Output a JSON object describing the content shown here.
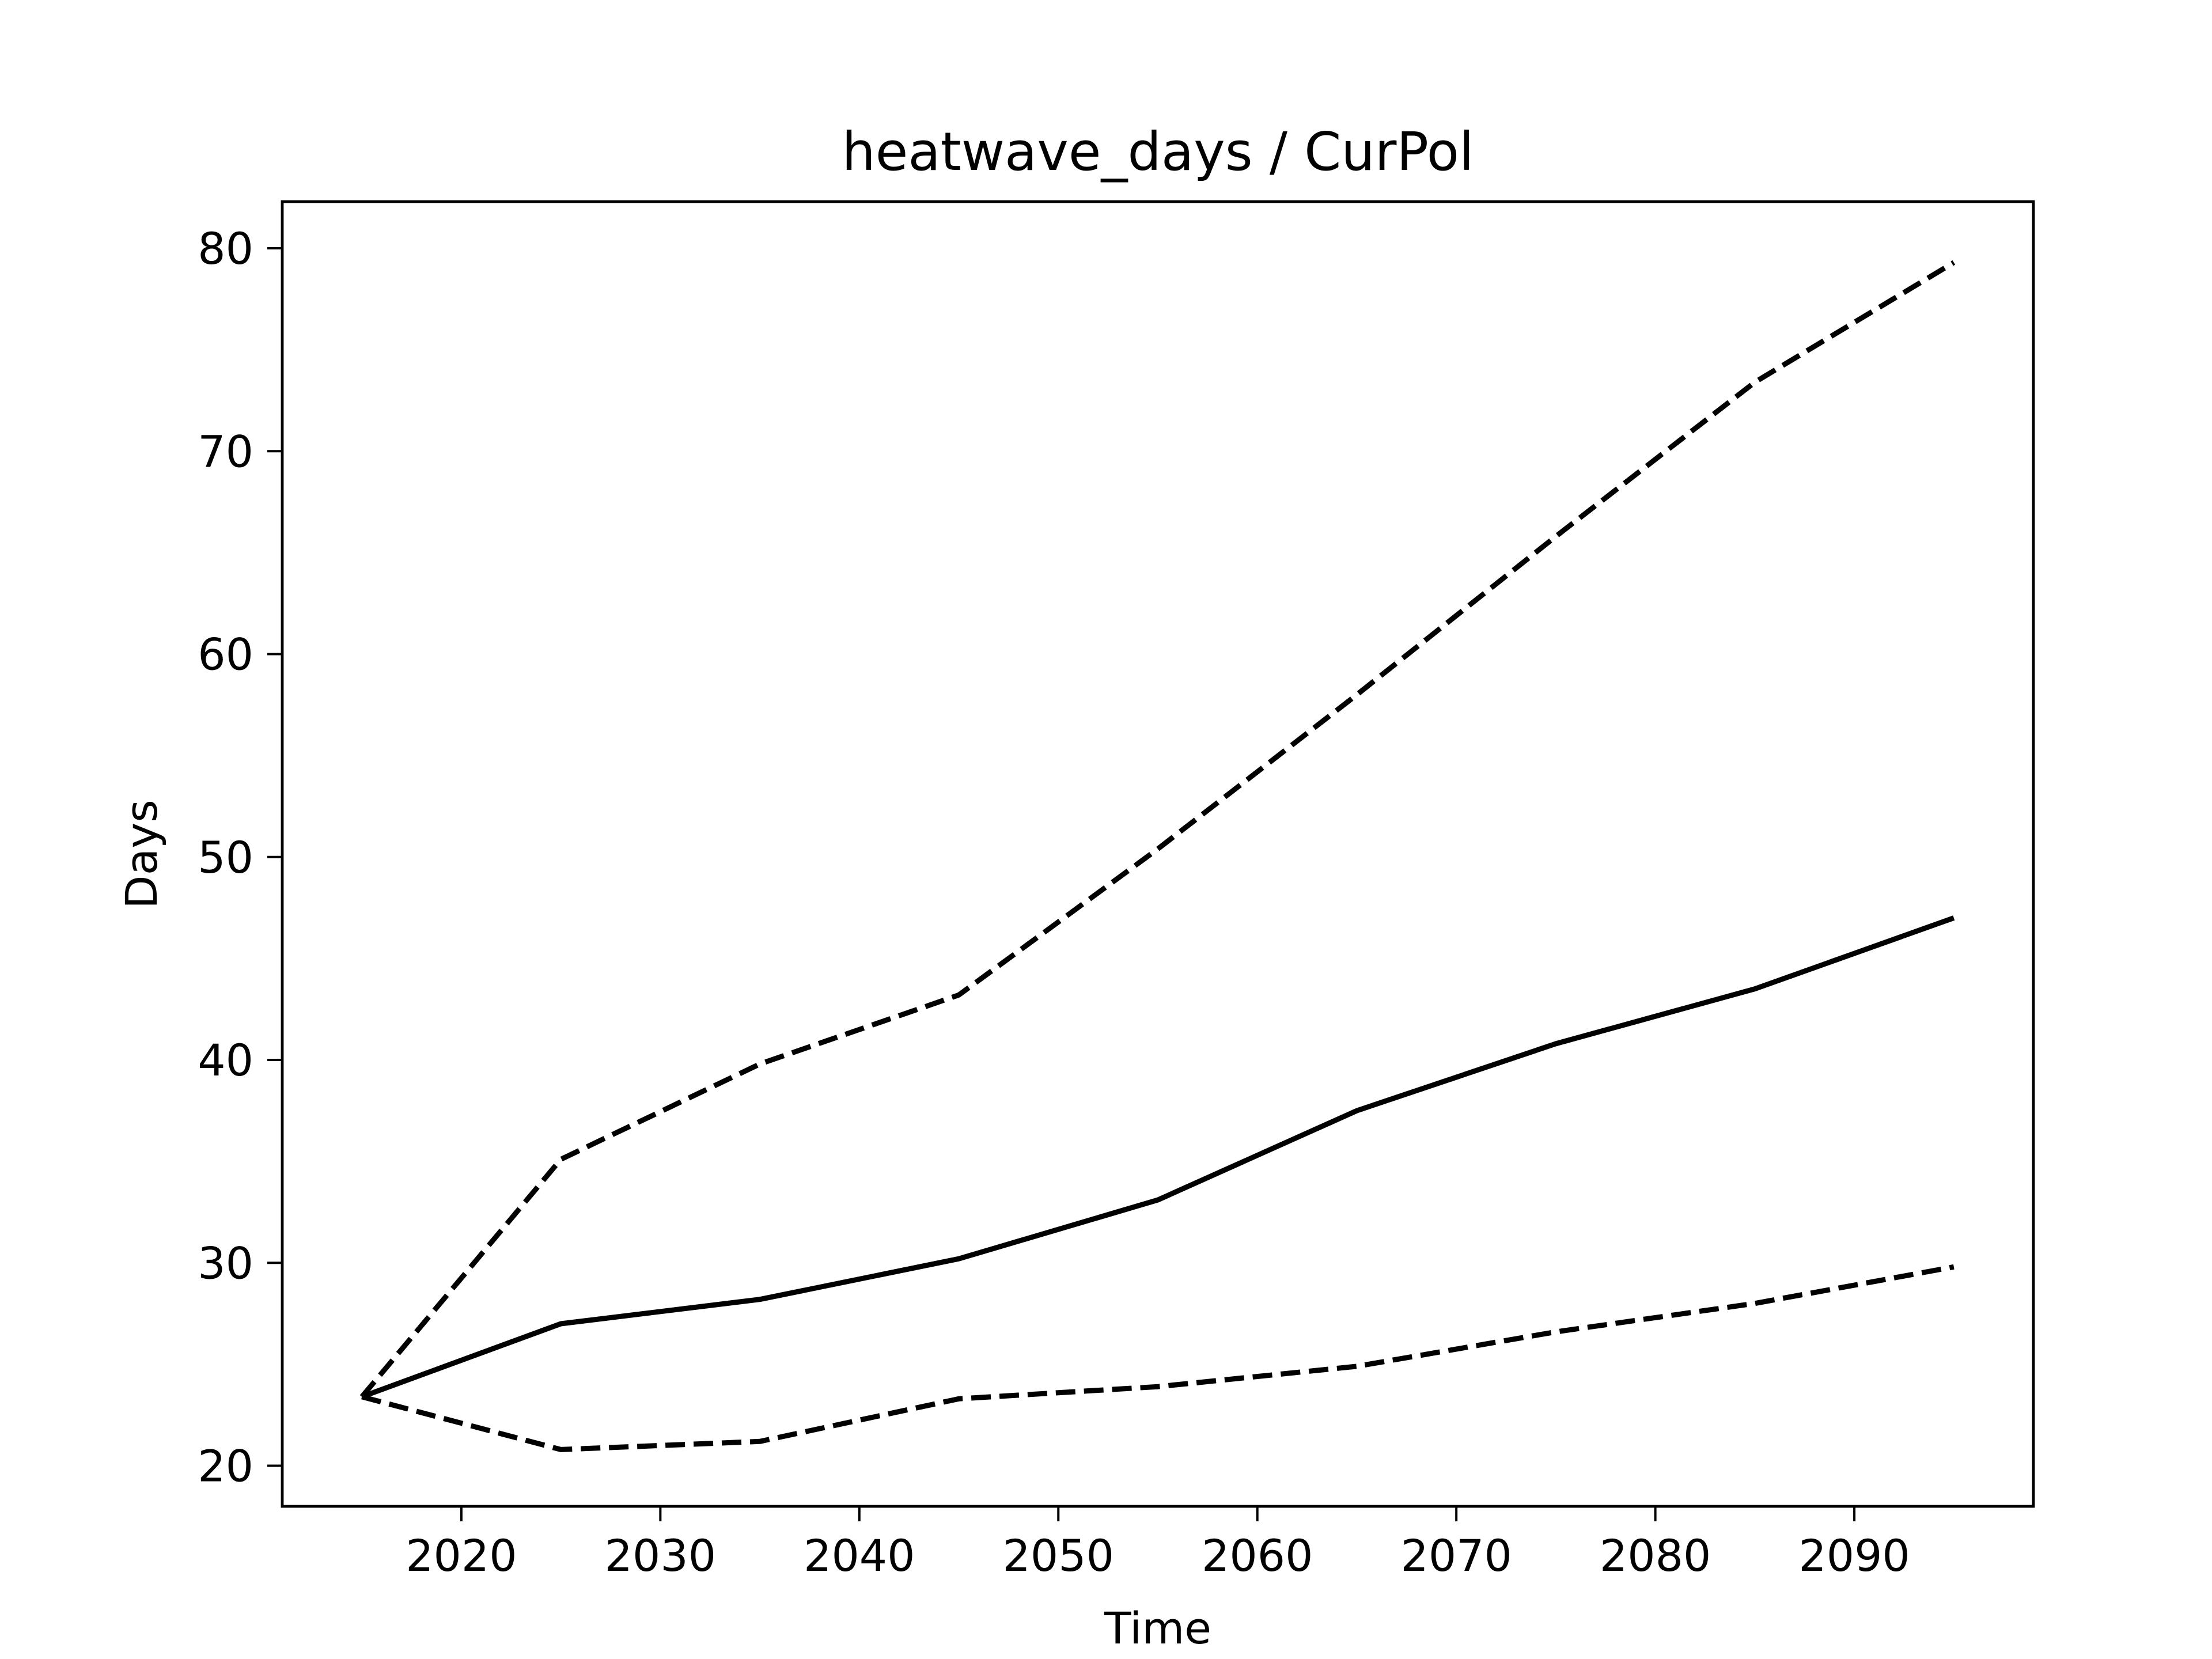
{
  "chart_data": {
    "type": "line",
    "title": "heatwave_days / CurPol",
    "xlabel": "Time",
    "ylabel": "Days",
    "x": [
      2015,
      2025,
      2035,
      2045,
      2055,
      2065,
      2075,
      2085,
      2095
    ],
    "xlim": [
      2011,
      2099
    ],
    "ylim": [
      18.0,
      82.3
    ],
    "xticks": [
      2020,
      2030,
      2040,
      2050,
      2060,
      2070,
      2080,
      2090
    ],
    "yticks": [
      20,
      30,
      40,
      50,
      60,
      70,
      80
    ],
    "grid": false,
    "series": [
      {
        "style": "solid",
        "color": "#000000",
        "values": [
          23.4,
          27.0,
          28.2,
          30.2,
          33.1,
          37.5,
          40.8,
          43.5,
          47.0
        ]
      },
      {
        "style": "dashed",
        "color": "#000000",
        "values": [
          23.4,
          35.1,
          39.8,
          43.2,
          50.4,
          58.0,
          65.8,
          73.4,
          79.3
        ]
      },
      {
        "style": "dashed",
        "color": "#000000",
        "values": [
          23.4,
          20.8,
          21.2,
          23.3,
          23.9,
          24.9,
          26.6,
          28.0,
          29.8
        ]
      }
    ]
  }
}
